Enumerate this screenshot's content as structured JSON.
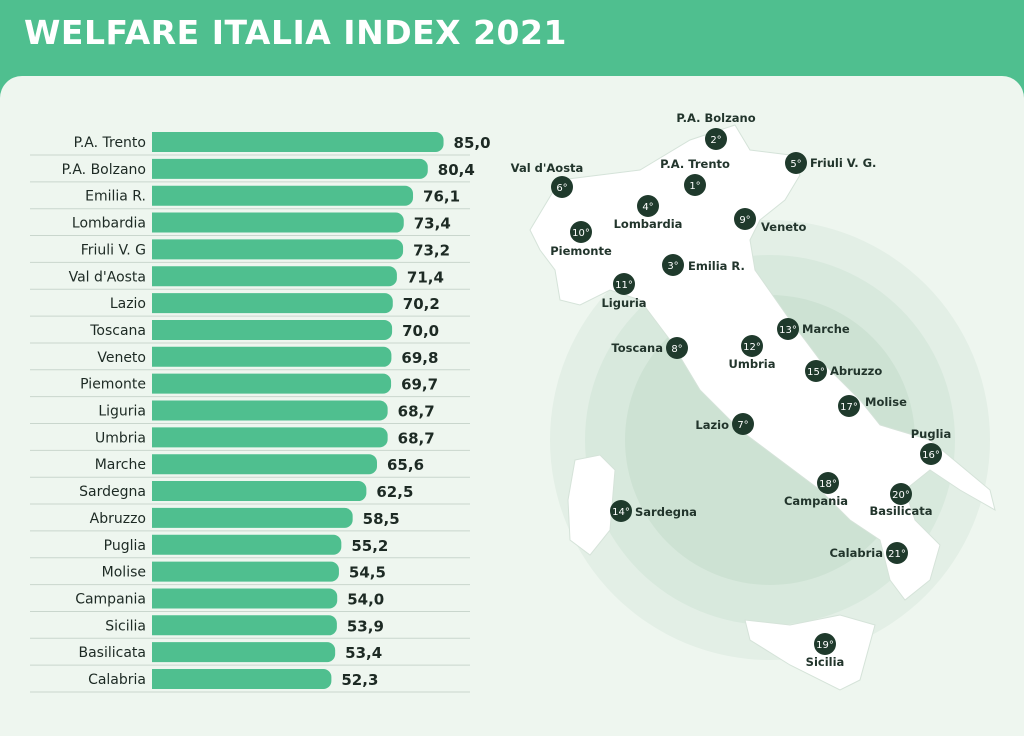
{
  "header": {
    "title": "WELFARE ITALIA INDEX 2021"
  },
  "colors": {
    "bar": "#4fbf8f",
    "header": "#4fbf8f",
    "background": "#eef6ef",
    "marker": "#1f3a2c",
    "map_fill": "#ffffff"
  },
  "chart_data": {
    "type": "bar",
    "orientation": "horizontal",
    "title": "WELFARE ITALIA INDEX 2021",
    "categories": [
      "P.A. Trento",
      "P.A. Bolzano",
      "Emilia R.",
      "Lombardia",
      "Friuli V. G",
      "Val d'Aosta",
      "Lazio",
      "Toscana",
      "Veneto",
      "Piemonte",
      "Liguria",
      "Umbria",
      "Marche",
      "Sardegna",
      "Abruzzo",
      "Puglia",
      "Molise",
      "Campania",
      "Sicilia",
      "Basilicata",
      "Calabria"
    ],
    "values": [
      85.0,
      80.4,
      76.1,
      73.4,
      73.2,
      71.4,
      70.2,
      70.0,
      69.8,
      69.7,
      68.7,
      68.7,
      65.6,
      62.5,
      58.5,
      55.2,
      54.5,
      54.0,
      53.9,
      53.4,
      52.3
    ],
    "value_labels": [
      "85,0",
      "80,4",
      "76,1",
      "73,4",
      "73,2",
      "71,4",
      "70,2",
      "70,0",
      "69,8",
      "69,7",
      "68,7",
      "68,7",
      "65,6",
      "62,5",
      "58,5",
      "55,2",
      "54,5",
      "54,0",
      "53,9",
      "53,4",
      "52,3"
    ]
  },
  "map": {
    "markers": [
      {
        "name": "P.A. Bolzano",
        "rank": "2°"
      },
      {
        "name": "P.A. Trento",
        "rank": "1°"
      },
      {
        "name": "Friuli V. G.",
        "rank": "5°"
      },
      {
        "name": "Val d'Aosta",
        "rank": "6°"
      },
      {
        "name": "Lombardia",
        "rank": "4°"
      },
      {
        "name": "Veneto",
        "rank": "9°"
      },
      {
        "name": "Piemonte",
        "rank": "10°"
      },
      {
        "name": "Emilia R.",
        "rank": "3°"
      },
      {
        "name": "Liguria",
        "rank": "11°"
      },
      {
        "name": "Marche",
        "rank": "13°"
      },
      {
        "name": "Toscana",
        "rank": "8°"
      },
      {
        "name": "Umbria",
        "rank": "12°"
      },
      {
        "name": "Abruzzo",
        "rank": "15°"
      },
      {
        "name": "Molise",
        "rank": "17°"
      },
      {
        "name": "Lazio",
        "rank": "7°"
      },
      {
        "name": "Puglia",
        "rank": "16°"
      },
      {
        "name": "Campania",
        "rank": "18°"
      },
      {
        "name": "Basilicata",
        "rank": "20°"
      },
      {
        "name": "Sardegna",
        "rank": "14°"
      },
      {
        "name": "Calabria",
        "rank": "21°"
      },
      {
        "name": "Sicilia",
        "rank": "19°"
      }
    ]
  }
}
